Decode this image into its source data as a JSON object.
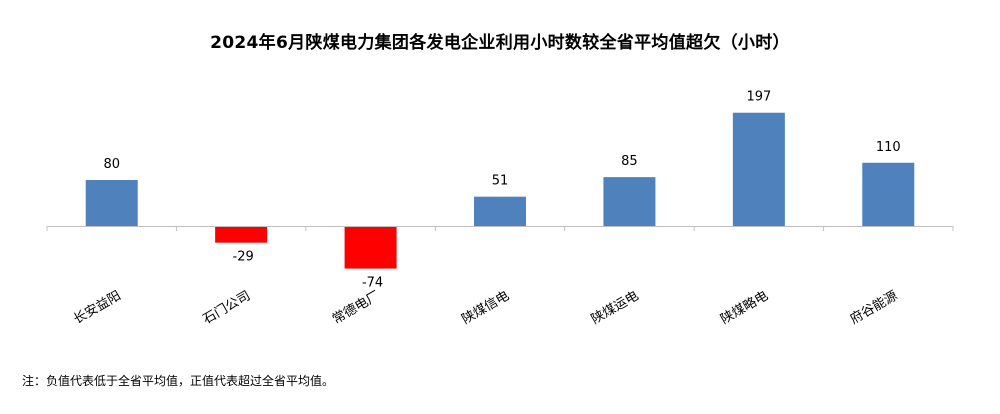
{
  "chart_data": {
    "type": "bar",
    "title": "2024年6月陕煤电力集团各发电企业利用小时数较全省平均值超欠（小时）",
    "categories": [
      "长安益阳",
      "石门公司",
      "常德电厂",
      "陕煤信电",
      "陕煤运电",
      "陕煤略电",
      "府谷能源"
    ],
    "values": [
      80,
      -29,
      -74,
      51,
      85,
      197,
      110
    ],
    "value_labels": [
      "80",
      "-29",
      "-74",
      "51",
      "85",
      "197",
      "110"
    ],
    "xlabel": "",
    "ylabel": "",
    "ylim": [
      -100,
      220
    ],
    "grid": false,
    "legend": "none",
    "colors": {
      "positive": "#4F81BD",
      "negative": "#FF0000",
      "axis": "#BFBFBF"
    }
  },
  "note": "注：负值代表低于全省平均值，正值代表超过全省平均值。"
}
